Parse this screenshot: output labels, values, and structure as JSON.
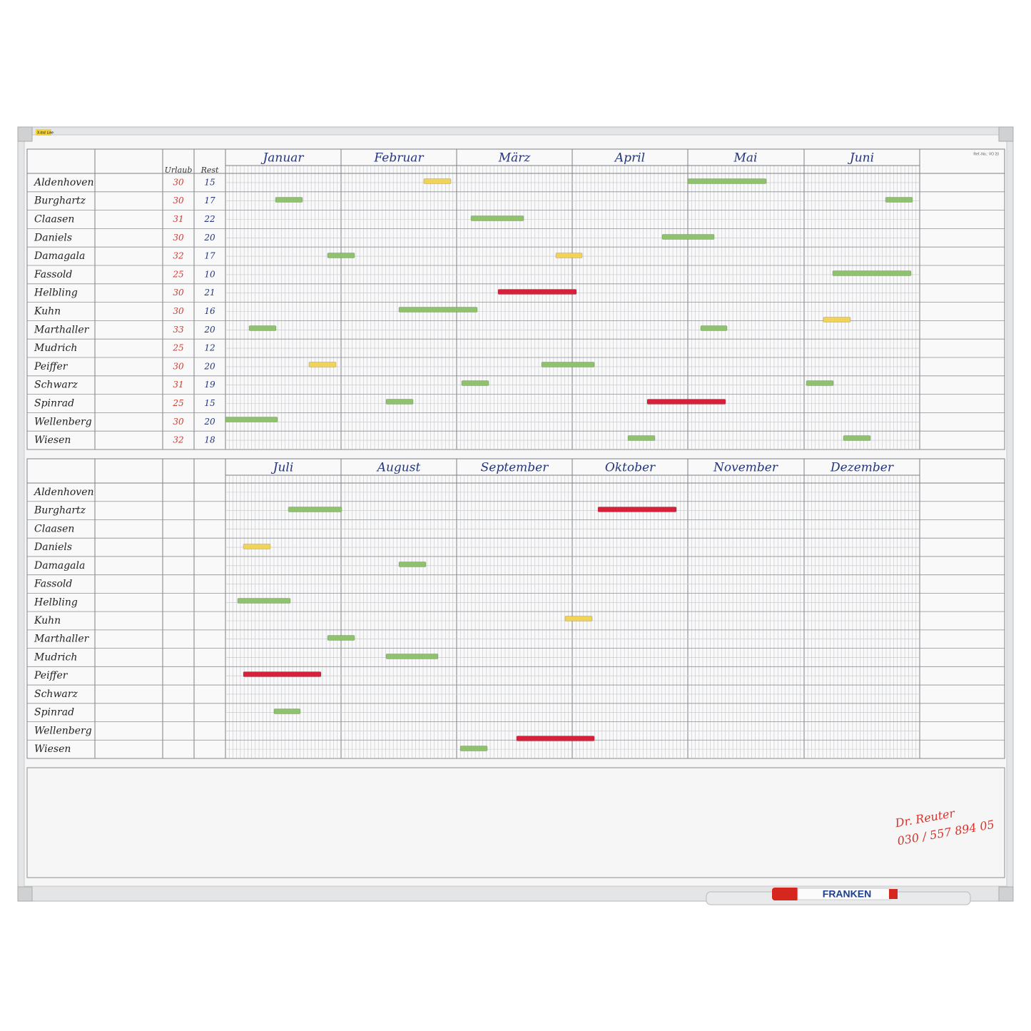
{
  "brand": "X-tra! Line",
  "ref": "Ref.-No.: VO 20",
  "columns": {
    "urlaub": "Urlaub",
    "rest": "Rest"
  },
  "months": [
    "Januar",
    "Februar",
    "März",
    "April",
    "Mai",
    "Juni",
    "Juli",
    "August",
    "September",
    "Oktober",
    "November",
    "Dezember"
  ],
  "employees": [
    {
      "name": "Aldenhoven",
      "urlaub": 30,
      "rest": 15
    },
    {
      "name": "Burghartz",
      "urlaub": 30,
      "rest": 17
    },
    {
      "name": "Claasen",
      "urlaub": 31,
      "rest": 22
    },
    {
      "name": "Daniels",
      "urlaub": 30,
      "rest": 20
    },
    {
      "name": "Damagala",
      "urlaub": 32,
      "rest": 17
    },
    {
      "name": "Fassold",
      "urlaub": 25,
      "rest": 10
    },
    {
      "name": "Helbling",
      "urlaub": 30,
      "rest": 21
    },
    {
      "name": "Kuhn",
      "urlaub": 30,
      "rest": 16
    },
    {
      "name": "Marthaller",
      "urlaub": 33,
      "rest": 20
    },
    {
      "name": "Mudrich",
      "urlaub": 25,
      "rest": 12
    },
    {
      "name": "Peiffer",
      "urlaub": 30,
      "rest": 20
    },
    {
      "name": "Schwarz",
      "urlaub": 31,
      "rest": 19
    },
    {
      "name": "Spinrad",
      "urlaub": 25,
      "rest": 15
    },
    {
      "name": "Wellenberg",
      "urlaub": 30,
      "rest": 20
    },
    {
      "name": "Wiesen",
      "urlaub": 32,
      "rest": 18
    }
  ],
  "note": {
    "line1": "Dr. Reuter",
    "line2": "030 / 557 894 05"
  },
  "marker": "FRANKEN"
}
